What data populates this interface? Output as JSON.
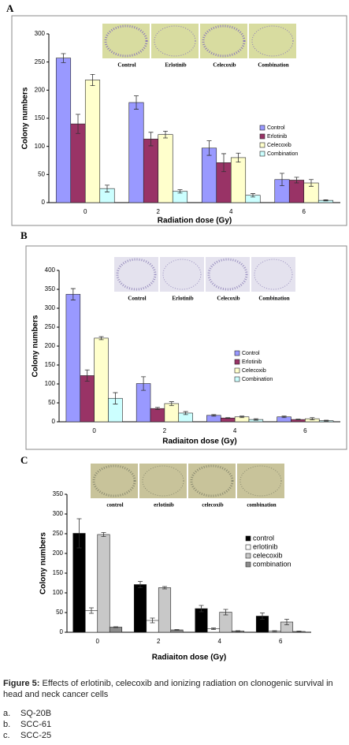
{
  "chart_data": [
    {
      "type": "bar",
      "panel_label": "A",
      "x_label": "Radiation dose (Gy)",
      "y_label": "Colony numbers",
      "plate_labels": [
        "Control",
        "Erlotinib",
        "Celecoxib",
        "Combination"
      ],
      "categories": [
        "0",
        "2",
        "4",
        "6"
      ],
      "series": [
        {
          "name": "Control",
          "color": "#9999ff",
          "values": [
            257,
            178,
            97,
            41
          ],
          "errors": [
            8,
            12,
            13,
            11
          ]
        },
        {
          "name": "Erlotinib",
          "color": "#993366",
          "values": [
            140,
            113,
            71,
            40
          ],
          "errors": [
            17,
            12,
            16,
            5
          ]
        },
        {
          "name": "Celecoxib",
          "color": "#ffffcc",
          "values": [
            218,
            121,
            80,
            35
          ],
          "errors": [
            10,
            6,
            8,
            6
          ]
        },
        {
          "name": "Combination",
          "color": "#ccffff",
          "values": [
            25,
            20,
            13,
            4
          ],
          "errors": [
            6,
            3,
            3,
            1
          ]
        }
      ],
      "ylim": [
        0,
        300
      ],
      "yticks": [
        0,
        50,
        100,
        150,
        200,
        250,
        300
      ]
    },
    {
      "type": "bar",
      "panel_label": "B",
      "x_label": "Radiaiton dose (Gy)",
      "y_label": "Colony numbers",
      "plate_labels": [
        "Control",
        "Erlotinib",
        "Celecoxib",
        "Combination"
      ],
      "categories": [
        "0",
        "2",
        "4",
        "6"
      ],
      "series": [
        {
          "name": "Control",
          "color": "#9999ff",
          "values": [
            337,
            101,
            17,
            13
          ],
          "errors": [
            15,
            18,
            2,
            2
          ]
        },
        {
          "name": "Erlotinib",
          "color": "#993366",
          "values": [
            122,
            35,
            10,
            6
          ],
          "errors": [
            15,
            3,
            1,
            1
          ]
        },
        {
          "name": "Celecoxib",
          "color": "#ffffcc",
          "values": [
            221,
            48,
            13,
            8
          ],
          "errors": [
            4,
            5,
            2,
            3
          ]
        },
        {
          "name": "Combination",
          "color": "#ccffff",
          "values": [
            62,
            23,
            6,
            3
          ],
          "errors": [
            15,
            4,
            2,
            1
          ]
        }
      ],
      "ylim": [
        0,
        400
      ],
      "yticks": [
        0,
        50,
        100,
        150,
        200,
        250,
        300,
        350,
        400
      ]
    },
    {
      "type": "bar",
      "panel_label": "C",
      "x_label": "Radiaiton dose (Gy)",
      "y_label": "Colony numbers",
      "plate_labels": [
        "control",
        "erlotinib",
        "celecoxib",
        "combination"
      ],
      "categories": [
        "0",
        "2",
        "4",
        "6"
      ],
      "series": [
        {
          "name": "control",
          "color": "#000000",
          "values": [
            251,
            121,
            60,
            41
          ],
          "errors": [
            37,
            8,
            8,
            8
          ]
        },
        {
          "name": "erlotinib",
          "color": "#ffffff",
          "values": [
            55,
            30,
            9,
            3
          ],
          "errors": [
            7,
            6,
            2,
            1
          ]
        },
        {
          "name": "celecoxib",
          "color": "#c8c8c8",
          "values": [
            248,
            113,
            51,
            26
          ],
          "errors": [
            5,
            3,
            7,
            7
          ]
        },
        {
          "name": "combination",
          "color": "#8c8c8c",
          "values": [
            13,
            6,
            3,
            2
          ],
          "errors": [
            1,
            1,
            1,
            1
          ]
        }
      ],
      "ylim": [
        0,
        350
      ],
      "yticks": [
        0,
        50,
        100,
        150,
        200,
        250,
        300,
        350
      ]
    }
  ],
  "caption": {
    "label": "Figure 5:",
    "text": "Effects of erlotinib, celecoxib and ionizing radiation on clonogenic survival in head and neck cancer cells",
    "items": [
      {
        "marker": "a.",
        "text": "SQ-20B"
      },
      {
        "marker": "b.",
        "text": "SCC-61"
      },
      {
        "marker": "c.",
        "text": "SCC-25"
      }
    ]
  }
}
